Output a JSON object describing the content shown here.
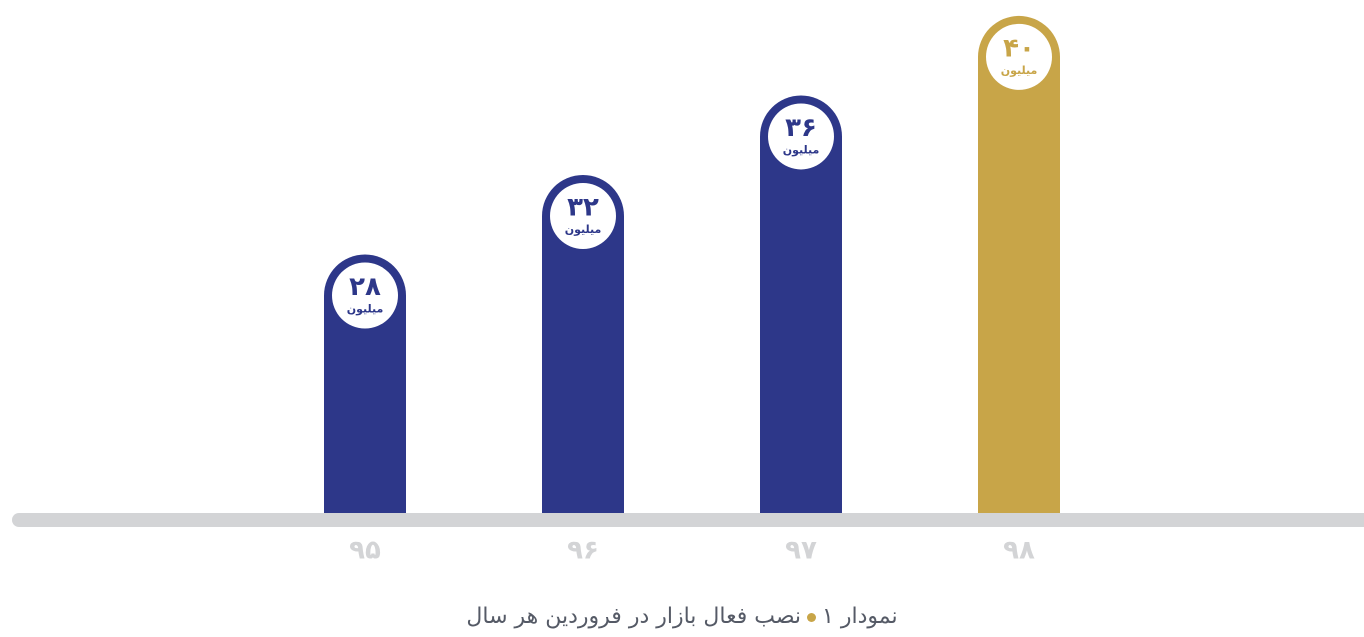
{
  "chart_data": {
    "type": "bar",
    "categories": [
      "۹۵",
      "۹۶",
      "۹۷",
      "۹۸"
    ],
    "values": [
      28,
      32,
      36,
      40
    ],
    "value_labels": [
      "۲۸",
      "۳۲",
      "۳۶",
      "۴۰"
    ],
    "unit_label": "میلیون",
    "colors": [
      "#2d3789",
      "#2d3789",
      "#2d3789",
      "#c8a548"
    ],
    "ylim": [
      15,
      40.8
    ],
    "caption": {
      "number": "نمودار ۱",
      "text": "نصب فعال بازار در فروردین هر سال"
    }
  }
}
